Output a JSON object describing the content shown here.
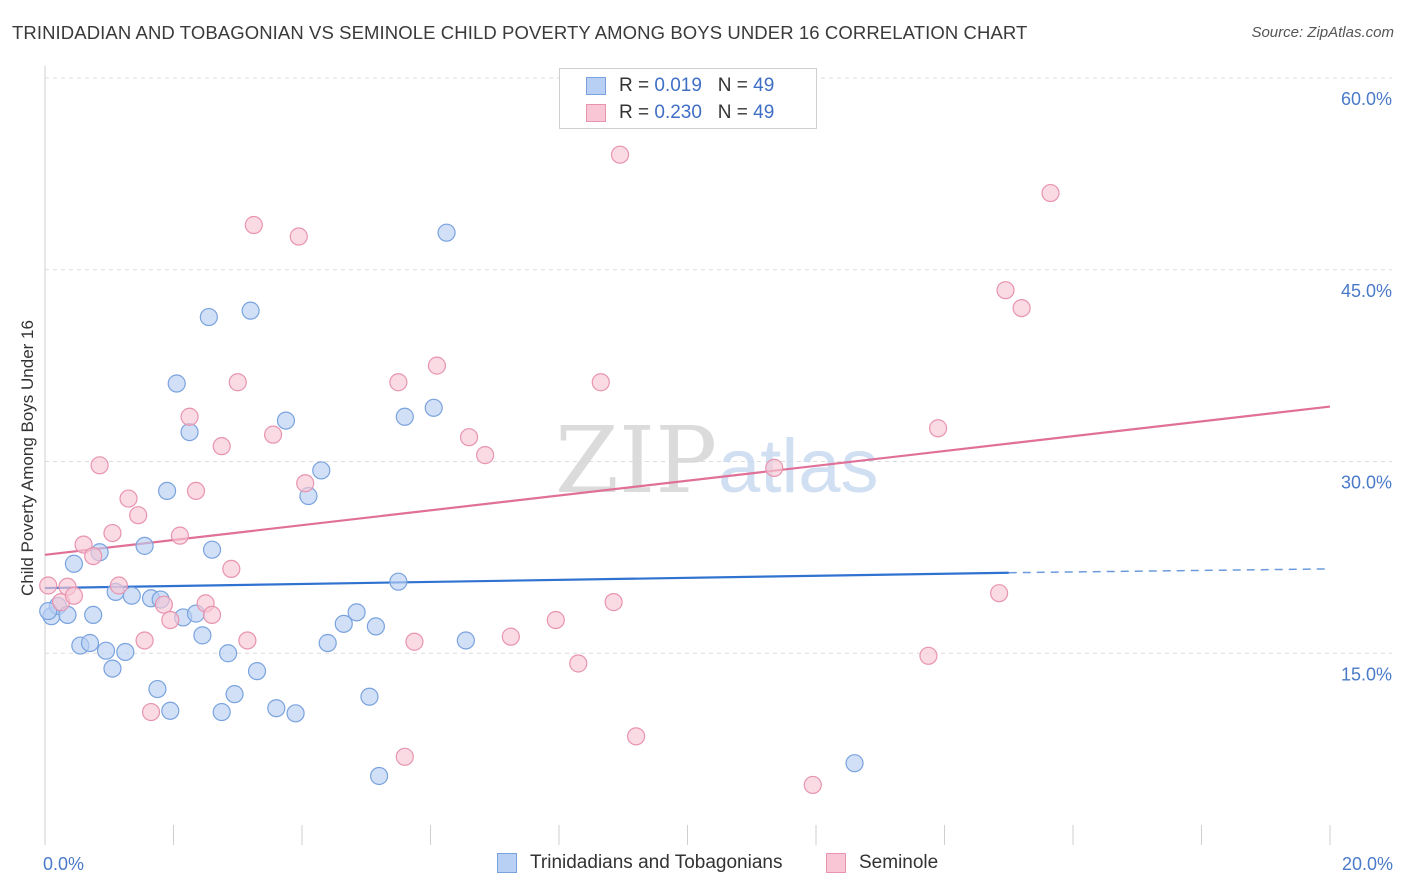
{
  "title": "TRINIDADIAN AND TOBAGONIAN VS SEMINOLE CHILD POVERTY AMONG BOYS UNDER 16 CORRELATION CHART",
  "source": "Source: ZipAtlas.com",
  "watermark": {
    "zip": "ZIP",
    "atlas": "atlas"
  },
  "legend": {
    "rows": [
      {
        "r_label": "R =",
        "r_value": "0.019",
        "n_label": "N =",
        "n_value": "49"
      },
      {
        "r_label": "R =",
        "r_value": "0.230",
        "n_label": "N =",
        "n_value": "49"
      }
    ]
  },
  "bottom_legend": [
    "Trinidadians and Tobagonians",
    "Seminole"
  ],
  "colors": {
    "blue_fill": "#b8d0f3",
    "blue_stroke": "#7aa3de",
    "blue_line": "#2f72d0",
    "pink_fill": "#f8c6d4",
    "pink_stroke": "#e894b0",
    "pink_line": "#e07098",
    "grid": "#dcdcdc",
    "tick_text": "#4a7ac8"
  },
  "chart_data": {
    "type": "scatter",
    "title": "TRINIDADIAN AND TOBAGONIAN VS SEMINOLE CHILD POVERTY AMONG BOYS UNDER 16 CORRELATION CHART",
    "xlabel": "",
    "ylabel": "Child Poverty Among Boys Under 16",
    "xlim": [
      0,
      20
    ],
    "ylim": [
      0,
      60
    ],
    "x_ticks": [
      "0.0%",
      "20.0%"
    ],
    "y_ticks": [
      {
        "value": 15,
        "label": "15.0%"
      },
      {
        "value": 30,
        "label": "30.0%"
      },
      {
        "value": 45,
        "label": "45.0%"
      },
      {
        "value": 60,
        "label": "60.0%"
      }
    ],
    "grid": true,
    "series": [
      {
        "name": "Trinidadians and Tobagonians",
        "color": "#7aa3de",
        "points": [
          [
            0.1,
            17.9
          ],
          [
            0.2,
            18.7
          ],
          [
            0.35,
            18.0
          ],
          [
            0.45,
            22.0
          ],
          [
            0.55,
            15.6
          ],
          [
            0.7,
            15.8
          ],
          [
            0.75,
            18.0
          ],
          [
            0.85,
            22.9
          ],
          [
            0.95,
            15.2
          ],
          [
            1.05,
            13.8
          ],
          [
            1.1,
            19.8
          ],
          [
            1.25,
            15.1
          ],
          [
            1.35,
            19.5
          ],
          [
            1.55,
            23.4
          ],
          [
            1.65,
            19.3
          ],
          [
            1.75,
            12.2
          ],
          [
            1.8,
            19.2
          ],
          [
            1.9,
            27.7
          ],
          [
            1.95,
            10.5
          ],
          [
            2.05,
            36.1
          ],
          [
            2.15,
            17.8
          ],
          [
            2.25,
            32.3
          ],
          [
            2.35,
            18.1
          ],
          [
            2.45,
            16.4
          ],
          [
            2.55,
            41.3
          ],
          [
            2.6,
            23.1
          ],
          [
            2.75,
            10.4
          ],
          [
            2.85,
            15.0
          ],
          [
            2.95,
            11.8
          ],
          [
            3.2,
            41.8
          ],
          [
            3.3,
            13.6
          ],
          [
            3.6,
            10.7
          ],
          [
            3.75,
            33.2
          ],
          [
            3.9,
            10.3
          ],
          [
            4.1,
            27.3
          ],
          [
            4.3,
            29.3
          ],
          [
            4.4,
            15.8
          ],
          [
            4.65,
            17.3
          ],
          [
            4.85,
            18.2
          ],
          [
            5.05,
            11.6
          ],
          [
            5.15,
            17.1
          ],
          [
            5.2,
            5.4
          ],
          [
            5.5,
            20.6
          ],
          [
            5.6,
            33.5
          ],
          [
            6.05,
            34.2
          ],
          [
            6.25,
            47.9
          ],
          [
            6.55,
            16.0
          ],
          [
            12.6,
            6.4
          ],
          [
            0.05,
            18.3
          ]
        ],
        "trendline": {
          "x": [
            0,
            15
          ],
          "y": [
            20.1,
            21.3
          ],
          "dashed_to": {
            "x": 20,
            "y": 21.6
          }
        }
      },
      {
        "name": "Seminole",
        "color": "#e894b0",
        "points": [
          [
            0.05,
            20.3
          ],
          [
            0.25,
            19.0
          ],
          [
            0.35,
            20.2
          ],
          [
            0.45,
            19.5
          ],
          [
            0.6,
            23.5
          ],
          [
            0.75,
            22.6
          ],
          [
            0.85,
            29.7
          ],
          [
            1.05,
            24.4
          ],
          [
            1.15,
            20.3
          ],
          [
            1.3,
            27.1
          ],
          [
            1.45,
            25.8
          ],
          [
            1.55,
            16.0
          ],
          [
            1.65,
            10.4
          ],
          [
            1.85,
            18.8
          ],
          [
            1.95,
            17.6
          ],
          [
            2.1,
            24.2
          ],
          [
            2.25,
            33.5
          ],
          [
            2.35,
            27.7
          ],
          [
            2.5,
            18.9
          ],
          [
            2.6,
            18.0
          ],
          [
            2.75,
            31.2
          ],
          [
            2.9,
            21.6
          ],
          [
            3.0,
            36.2
          ],
          [
            3.15,
            16.0
          ],
          [
            3.25,
            48.5
          ],
          [
            3.55,
            32.1
          ],
          [
            3.95,
            47.6
          ],
          [
            4.05,
            28.3
          ],
          [
            5.5,
            36.2
          ],
          [
            5.6,
            6.9
          ],
          [
            5.75,
            15.9
          ],
          [
            6.1,
            37.5
          ],
          [
            6.6,
            31.9
          ],
          [
            6.85,
            30.5
          ],
          [
            7.25,
            16.3
          ],
          [
            7.95,
            17.6
          ],
          [
            8.3,
            14.2
          ],
          [
            8.65,
            36.2
          ],
          [
            8.85,
            19.0
          ],
          [
            8.95,
            54.0
          ],
          [
            9.2,
            8.5
          ],
          [
            11.35,
            29.5
          ],
          [
            11.95,
            4.7
          ],
          [
            13.75,
            14.8
          ],
          [
            13.9,
            32.6
          ],
          [
            14.85,
            19.7
          ],
          [
            14.95,
            43.4
          ],
          [
            15.2,
            42.0
          ],
          [
            15.65,
            51.0
          ]
        ],
        "trendline": {
          "x": [
            0,
            20
          ],
          "y": [
            22.7,
            34.3
          ]
        }
      }
    ]
  }
}
